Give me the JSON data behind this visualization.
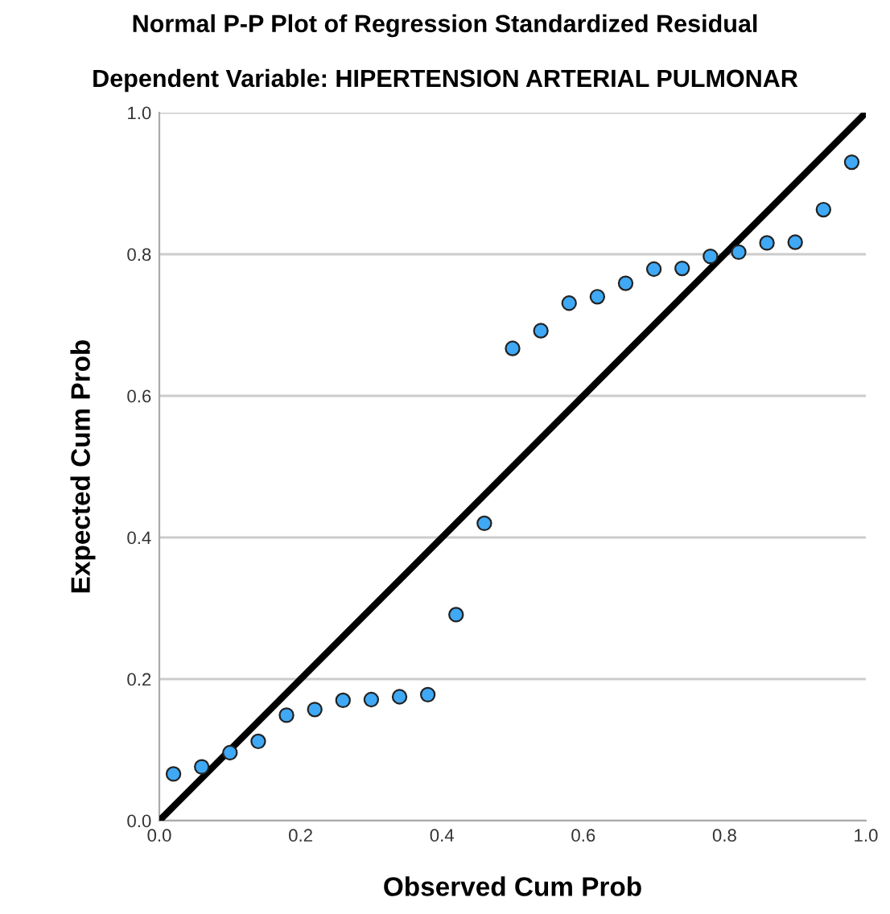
{
  "chart_data": {
    "type": "scatter",
    "title": "Normal P-P Plot of Regression Standardized Residual",
    "subtitle": "Dependent Variable: HIPERTENSION ARTERIAL PULMONAR",
    "xlabel": "Observed Cum Prob",
    "ylabel": "Expected Cum Prob",
    "series": [
      {
        "color": "#3fa9f5",
        "marker": "circle",
        "x": [
          0.02,
          0.06,
          0.1,
          0.14,
          0.18,
          0.22,
          0.26,
          0.3,
          0.34,
          0.38,
          0.42,
          0.46,
          0.5,
          0.54,
          0.58,
          0.62,
          0.66,
          0.7,
          0.74,
          0.78,
          0.82,
          0.86,
          0.9,
          0.94,
          0.98
        ],
        "values": [
          0.066,
          0.076,
          0.096,
          0.112,
          0.149,
          0.157,
          0.17,
          0.171,
          0.175,
          0.178,
          0.291,
          0.42,
          0.667,
          0.692,
          0.731,
          0.74,
          0.759,
          0.779,
          0.78,
          0.797,
          0.803,
          0.816,
          0.817,
          0.863,
          0.93
        ]
      },
      {
        "type": "line",
        "color": "#000000",
        "x": [
          0,
          1
        ],
        "values": [
          0,
          1
        ]
      }
    ],
    "xlim": [
      0,
      1
    ],
    "ylim": [
      0,
      1
    ],
    "xticks": [
      {
        "value": 0,
        "label": "0.0"
      },
      {
        "value": 0.2,
        "label": "0.2"
      },
      {
        "value": 0.4,
        "label": "0.4"
      },
      {
        "value": 0.6,
        "label": "0.6"
      },
      {
        "value": 0.8,
        "label": "0.8"
      },
      {
        "value": 1,
        "label": "1.0"
      }
    ],
    "yticks": [
      {
        "value": 0,
        "label": "0.0"
      },
      {
        "value": 0.2,
        "label": "0.2"
      },
      {
        "value": 0.4,
        "label": "0.4"
      },
      {
        "value": 0.6,
        "label": "0.6"
      },
      {
        "value": 0.8,
        "label": "0.8"
      },
      {
        "value": 1,
        "label": "1.0"
      }
    ],
    "grid": "y"
  }
}
